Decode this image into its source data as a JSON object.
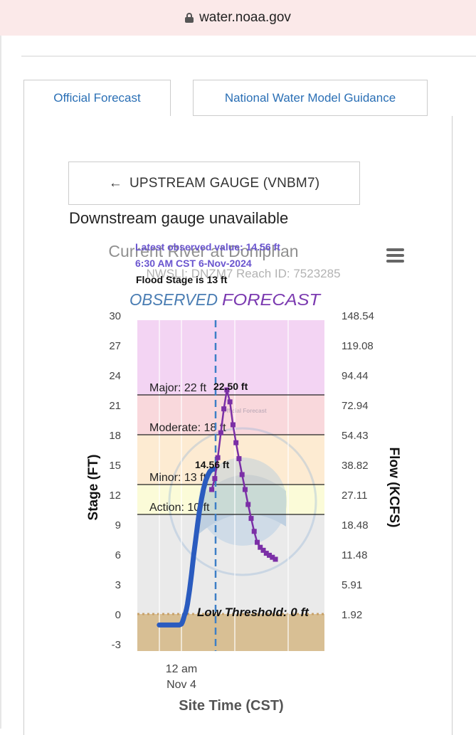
{
  "browser": {
    "url": "water.noaa.gov"
  },
  "tabs": [
    {
      "label": "Official Forecast",
      "active": true
    },
    {
      "label": "National Water Model Guidance",
      "active": false
    }
  ],
  "upstream_button": {
    "arrow": "←",
    "label": "UPSTREAM GAUGE (VNBM7)"
  },
  "downstream_label": "Downstream gauge unavailable",
  "chart_data": {
    "type": "line",
    "title": "Current River at Doniphan",
    "subtitle": "NWSLI: DNZM7   Reach ID: 7523285",
    "latest_observed": "Latest observed value: 14.56 ft",
    "latest_time": "6:30 AM CST 6-Nov-2024",
    "flood_stage_note": "Flood Stage is 13 ft",
    "observed_label": "OBSERVED",
    "forecast_label": "FORECAST",
    "xlabel": "Site Time (CST)",
    "ylabel": "Stage (FT)",
    "y2label": "Flow (KCFS)",
    "x_tick_label": [
      "12 am",
      "Nov 4"
    ],
    "ylim": [
      -4.5,
      29.5
    ],
    "y_ticks": [
      30,
      27,
      24,
      21,
      18,
      15,
      12,
      9,
      6,
      3,
      0,
      -3
    ],
    "y2_ticks": [
      "148.54",
      "119.08",
      "94.44",
      "72.94",
      "54.43",
      "38.82",
      "27.11",
      "18.48",
      "11.48",
      "5.91",
      "1.92"
    ],
    "thresholds": [
      {
        "name": "Major",
        "label": "Major: 22 ft",
        "value": 22
      },
      {
        "name": "Moderate",
        "label": "Moderate: 18 ft",
        "value": 18
      },
      {
        "name": "Minor",
        "label": "Minor: 13 ft",
        "value": 13
      },
      {
        "name": "Action",
        "label": "Action: 10 ft",
        "value": 10
      },
      {
        "name": "Low Threshold",
        "label": "Low Threshold: 0 ft",
        "value": 0
      }
    ],
    "band_colors": {
      "major": "#f3d4f3",
      "moderate": "#f9d8dc",
      "minor": "#fdebd2",
      "action": "#fbfbd8",
      "normal": "#eaeaea",
      "low": "#d8bf94"
    },
    "observed_color": "#2a5bbf",
    "forecast_color": "#7b2fa6",
    "observed_peak_label": "14.56 ft",
    "forecast_peak_label": "22.50 ft",
    "watermark_text": "Official Forecast",
    "series": [
      {
        "name": "OBSERVED",
        "x_hours": [
          -22,
          -20,
          -18,
          -16,
          -14,
          -12,
          -10,
          -8,
          -6,
          -4,
          -2,
          0,
          1,
          2,
          3,
          4,
          5,
          6,
          8,
          10,
          12,
          14,
          16,
          18,
          20,
          22,
          24,
          26,
          28,
          30,
          32,
          33
        ],
        "values": [
          -1.1,
          -1.1,
          -1.1,
          -1.1,
          -1.1,
          -1.1,
          -1.1,
          -1.1,
          -1.1,
          -1.1,
          -1.1,
          -1.0,
          -0.8,
          -0.5,
          -0.1,
          0.1,
          0.5,
          1.0,
          2.4,
          4.0,
          5.8,
          7.4,
          9.0,
          10.5,
          11.6,
          12.6,
          13.4,
          13.9,
          14.3,
          14.5,
          14.56,
          14.56
        ]
      },
      {
        "name": "FORECAST",
        "x_hours": [
          30,
          33,
          36,
          39,
          42,
          45,
          48,
          51,
          54,
          57,
          60,
          63,
          66,
          69,
          72,
          75,
          78,
          81,
          84,
          87,
          90,
          93
        ],
        "values": [
          12.5,
          13.6,
          15.7,
          18.2,
          20.6,
          22.5,
          21.3,
          19.0,
          17.2,
          15.6,
          14.0,
          12.5,
          11.0,
          9.6,
          8.3,
          7.2,
          6.7,
          6.4,
          6.1,
          5.9,
          5.7,
          5.5
        ]
      }
    ]
  }
}
